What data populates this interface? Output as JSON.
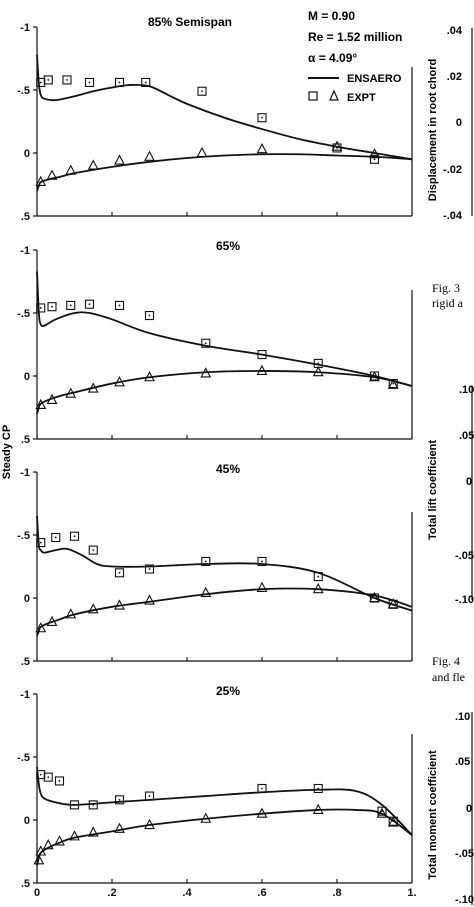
{
  "chart_data": {
    "type": "line",
    "ylabel": "Steady CP",
    "xticks": [
      "0",
      ".2",
      ".4",
      ".6",
      ".8",
      "1."
    ],
    "yticks": [
      "-1",
      "-.5",
      "0",
      ".5"
    ],
    "ylim": [
      0.5,
      -1.0
    ],
    "xlim": [
      0,
      1.0
    ],
    "legend": {
      "lines": [
        "M = 0.90",
        "Re = 1.52 million",
        "α = 4.09°"
      ],
      "entries": [
        "ENSAERO",
        "EXPT"
      ]
    },
    "panels": [
      {
        "label": "85% Semispan",
        "series": [
          {
            "name": "ENSAERO",
            "surface": "upper",
            "x": [
              0,
              0.005,
              0.01,
              0.02,
              0.05,
              0.1,
              0.15,
              0.2,
              0.25,
              0.3,
              0.35,
              0.4,
              0.5,
              0.6,
              0.7,
              0.8,
              0.9,
              1.0
            ],
            "y": [
              -0.78,
              -0.55,
              -0.46,
              -0.43,
              -0.42,
              -0.45,
              -0.49,
              -0.52,
              -0.54,
              -0.53,
              -0.46,
              -0.39,
              -0.28,
              -0.19,
              -0.11,
              -0.05,
              0.0,
              0.05
            ]
          },
          {
            "name": "ENSAERO",
            "surface": "lower",
            "x": [
              0,
              0.005,
              0.01,
              0.03,
              0.06,
              0.1,
              0.2,
              0.3,
              0.4,
              0.5,
              0.6,
              0.7,
              0.8,
              0.9,
              1.0
            ],
            "y": [
              0.3,
              0.26,
              0.23,
              0.21,
              0.19,
              0.16,
              0.11,
              0.07,
              0.04,
              0.02,
              0.01,
              0.01,
              0.02,
              0.03,
              0.05
            ]
          },
          {
            "name": "EXPT",
            "surface": "upper",
            "x": [
              0.01,
              0.03,
              0.08,
              0.14,
              0.22,
              0.29,
              0.44,
              0.6,
              0.8,
              0.9
            ],
            "y": [
              -0.56,
              -0.58,
              -0.58,
              -0.56,
              -0.56,
              -0.56,
              -0.49,
              -0.28,
              -0.04,
              0.05
            ]
          },
          {
            "name": "EXPT",
            "surface": "lower",
            "x": [
              0.01,
              0.04,
              0.09,
              0.15,
              0.22,
              0.3,
              0.44,
              0.6,
              0.8,
              0.9
            ],
            "y": [
              0.23,
              0.18,
              0.14,
              0.1,
              0.06,
              0.03,
              0.0,
              -0.03,
              -0.05,
              0.01
            ]
          }
        ]
      },
      {
        "label": "65%",
        "series": [
          {
            "name": "ENSAERO",
            "surface": "upper",
            "x": [
              0,
              0.005,
              0.01,
              0.02,
              0.05,
              0.1,
              0.14,
              0.2,
              0.3,
              0.45,
              0.6,
              0.75,
              0.9,
              1.0
            ],
            "y": [
              -0.83,
              -0.5,
              -0.41,
              -0.4,
              -0.45,
              -0.5,
              -0.5,
              -0.45,
              -0.34,
              -0.24,
              -0.17,
              -0.09,
              0.0,
              0.08
            ]
          },
          {
            "name": "ENSAERO",
            "surface": "lower",
            "x": [
              0,
              0.005,
              0.01,
              0.03,
              0.06,
              0.1,
              0.2,
              0.3,
              0.45,
              0.6,
              0.75,
              0.9,
              1.0
            ],
            "y": [
              0.3,
              0.25,
              0.22,
              0.19,
              0.16,
              0.13,
              0.06,
              0.01,
              -0.03,
              -0.04,
              -0.03,
              0.01,
              0.08
            ]
          },
          {
            "name": "EXPT",
            "surface": "upper",
            "x": [
              0.01,
              0.04,
              0.09,
              0.14,
              0.22,
              0.3,
              0.45,
              0.6,
              0.75,
              0.9,
              0.95
            ],
            "y": [
              -0.54,
              -0.55,
              -0.56,
              -0.57,
              -0.56,
              -0.48,
              -0.26,
              -0.17,
              -0.1,
              0.0,
              0.06
            ]
          },
          {
            "name": "EXPT",
            "surface": "lower",
            "x": [
              0.01,
              0.04,
              0.09,
              0.15,
              0.22,
              0.3,
              0.45,
              0.6,
              0.75,
              0.9,
              0.95
            ],
            "y": [
              0.23,
              0.19,
              0.14,
              0.1,
              0.05,
              0.01,
              -0.02,
              -0.04,
              -0.03,
              0.01,
              0.07
            ]
          }
        ]
      },
      {
        "label": "45%",
        "series": [
          {
            "name": "ENSAERO",
            "surface": "upper",
            "x": [
              0,
              0.005,
              0.01,
              0.02,
              0.05,
              0.08,
              0.12,
              0.16,
              0.2,
              0.3,
              0.45,
              0.6,
              0.75,
              0.9,
              1.0
            ],
            "y": [
              -0.65,
              -0.42,
              -0.38,
              -0.36,
              -0.38,
              -0.39,
              -0.34,
              -0.27,
              -0.25,
              -0.25,
              -0.27,
              -0.27,
              -0.2,
              0.0,
              0.1
            ]
          },
          {
            "name": "ENSAERO",
            "surface": "lower",
            "x": [
              0,
              0.005,
              0.01,
              0.03,
              0.06,
              0.1,
              0.2,
              0.3,
              0.45,
              0.6,
              0.75,
              0.9,
              1.0
            ],
            "y": [
              0.3,
              0.26,
              0.23,
              0.2,
              0.17,
              0.13,
              0.07,
              0.03,
              -0.03,
              -0.07,
              -0.07,
              -0.02,
              0.07
            ]
          },
          {
            "name": "EXPT",
            "surface": "upper",
            "x": [
              0.01,
              0.05,
              0.1,
              0.15,
              0.22,
              0.3,
              0.45,
              0.6,
              0.75,
              0.9,
              0.95
            ],
            "y": [
              -0.44,
              -0.48,
              -0.49,
              -0.38,
              -0.2,
              -0.23,
              -0.29,
              -0.29,
              -0.17,
              0.0,
              0.05
            ]
          },
          {
            "name": "EXPT",
            "surface": "lower",
            "x": [
              0.01,
              0.04,
              0.09,
              0.15,
              0.22,
              0.3,
              0.45,
              0.6,
              0.75,
              0.9,
              0.95
            ],
            "y": [
              0.24,
              0.19,
              0.13,
              0.09,
              0.06,
              0.02,
              -0.04,
              -0.08,
              -0.07,
              0.0,
              0.05
            ]
          }
        ]
      },
      {
        "label": "25%",
        "series": [
          {
            "name": "ENSAERO",
            "surface": "upper",
            "x": [
              0,
              0.005,
              0.01,
              0.02,
              0.05,
              0.1,
              0.2,
              0.3,
              0.45,
              0.6,
              0.75,
              0.85,
              0.92,
              1.0
            ],
            "y": [
              -0.42,
              -0.28,
              -0.21,
              -0.17,
              -0.14,
              -0.12,
              -0.14,
              -0.16,
              -0.19,
              -0.22,
              -0.24,
              -0.23,
              -0.12,
              0.12
            ]
          },
          {
            "name": "ENSAERO",
            "surface": "lower",
            "x": [
              0,
              0.005,
              0.01,
              0.03,
              0.06,
              0.1,
              0.2,
              0.3,
              0.45,
              0.6,
              0.75,
              0.85,
              0.92,
              1.0
            ],
            "y": [
              0.36,
              0.3,
              0.26,
              0.22,
              0.18,
              0.14,
              0.09,
              0.04,
              -0.01,
              -0.05,
              -0.08,
              -0.08,
              -0.05,
              0.12
            ]
          },
          {
            "name": "EXPT",
            "surface": "upper",
            "x": [
              0.01,
              0.03,
              0.06,
              0.1,
              0.15,
              0.22,
              0.3,
              0.6,
              0.75,
              0.92,
              0.95
            ],
            "y": [
              -0.36,
              -0.34,
              -0.31,
              -0.12,
              -0.12,
              -0.16,
              -0.19,
              -0.25,
              -0.25,
              -0.07,
              0.01
            ]
          },
          {
            "name": "EXPT",
            "surface": "lower",
            "x": [
              0.005,
              0.01,
              0.03,
              0.06,
              0.1,
              0.15,
              0.22,
              0.3,
              0.45,
              0.6,
              0.75,
              0.92,
              0.95
            ],
            "y": [
              0.32,
              0.25,
              0.2,
              0.17,
              0.13,
              0.1,
              0.07,
              0.04,
              -0.01,
              -0.05,
              -0.08,
              -0.05,
              0.02
            ]
          }
        ]
      }
    ]
  },
  "right_column": {
    "panel1": {
      "ylabel": "Displacement in root chord",
      "yticks": [
        ".04",
        ".02",
        "0",
        "-.02",
        "-.04"
      ]
    },
    "caption1": {
      "lines": [
        "Fig. 3",
        "rigid a"
      ]
    },
    "panel2": {
      "ylabel": "Total lift coefficient",
      "yticks": [
        ".10",
        ".05",
        "0",
        "-.05",
        "-.10"
      ]
    },
    "caption2": {
      "lines": [
        "Fig. 4",
        "and fle"
      ]
    },
    "panel3": {
      "ylabel": "Total moment coefficient",
      "yticks": [
        ".10",
        ".05",
        "0",
        "-.05",
        "-.10"
      ]
    }
  },
  "colors": {
    "ink": "#111111",
    "background": "#ffffff"
  }
}
